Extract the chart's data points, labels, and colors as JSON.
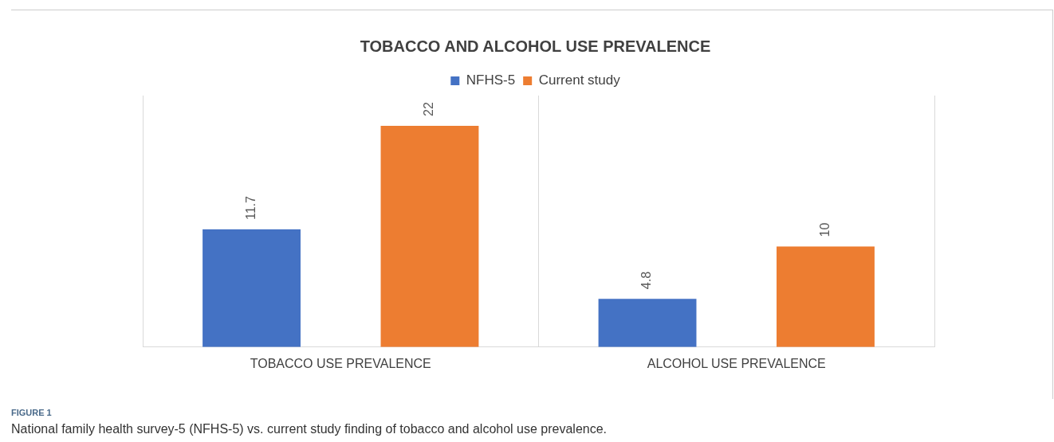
{
  "chart_data": {
    "type": "bar",
    "title": "TOBACCO AND ALCOHOL USE PREVALENCE",
    "categories": [
      "TOBACCO USE PREVALENCE",
      "ALCOHOL USE PREVALENCE"
    ],
    "series": [
      {
        "name": "NFHS-5",
        "color": "#4472c4",
        "values": [
          11.7,
          4.8
        ]
      },
      {
        "name": "Current study",
        "color": "#ed7d31",
        "values": [
          22,
          10
        ]
      }
    ],
    "data_labels": true,
    "grid": "x",
    "legend": "top",
    "tick_labels": "x",
    "annotations": [
      "FIGURE 1",
      "National family health survey-5 (NFHS-5) vs. current study finding of tobacco and alcohol use prevalence."
    ]
  }
}
